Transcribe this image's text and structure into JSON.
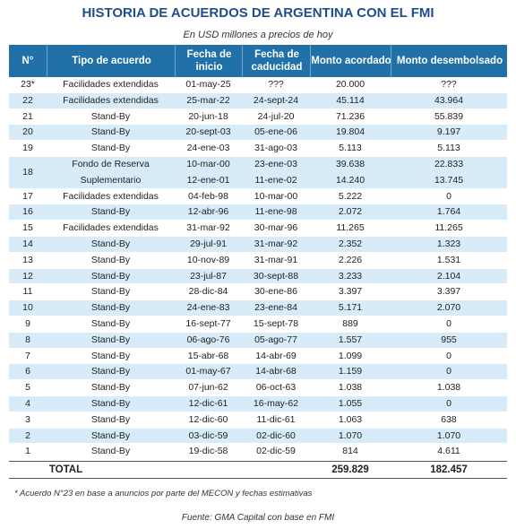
{
  "title": "HISTORIA DE ACUERDOS DE ARGENTINA CON EL FMI",
  "subtitle": "En USD millones a precios de hoy",
  "table": {
    "header": [
      "N°",
      "Tipo de acuerdo",
      "Fecha de inicio",
      "Fecha de caducidad",
      "Monto acordado",
      "Monto desembolsado"
    ],
    "rows": [
      {
        "n": "23*",
        "lines": [
          [
            "Facilidades extendidas",
            "01-may-25",
            "???",
            "20.000",
            "???"
          ]
        ]
      },
      {
        "n": "22",
        "lines": [
          [
            "Facilidades extendidas",
            "25-mar-22",
            "24-sept-24",
            "45.114",
            "43.964"
          ]
        ]
      },
      {
        "n": "21",
        "lines": [
          [
            "Stand-By",
            "20-jun-18",
            "24-jul-20",
            "71.236",
            "55.839"
          ]
        ]
      },
      {
        "n": "20",
        "lines": [
          [
            "Stand-By",
            "20-sept-03",
            "05-ene-06",
            "19.804",
            "9.197"
          ]
        ]
      },
      {
        "n": "19",
        "lines": [
          [
            "Stand-By",
            "24-ene-03",
            "31-ago-03",
            "5.113",
            "5.113"
          ]
        ]
      },
      {
        "n": "18",
        "lines": [
          [
            "Fondo de Reserva",
            "10-mar-00",
            "23-ene-03",
            "39.638",
            "22.833"
          ],
          [
            "Suplementario",
            "12-ene-01",
            "11-ene-02",
            "14.240",
            "13.745"
          ]
        ]
      },
      {
        "n": "17",
        "lines": [
          [
            "Facilidades extendidas",
            "04-feb-98",
            "10-mar-00",
            "5.222",
            "0"
          ]
        ]
      },
      {
        "n": "16",
        "lines": [
          [
            "Stand-By",
            "12-abr-96",
            "11-ene-98",
            "2.072",
            "1.764"
          ]
        ]
      },
      {
        "n": "15",
        "lines": [
          [
            "Facilidades extendidas",
            "31-mar-92",
            "30-mar-96",
            "11.265",
            "11.265"
          ]
        ]
      },
      {
        "n": "14",
        "lines": [
          [
            "Stand-By",
            "29-jul-91",
            "31-mar-92",
            "2.352",
            "1.323"
          ]
        ]
      },
      {
        "n": "13",
        "lines": [
          [
            "Stand-By",
            "10-nov-89",
            "31-mar-91",
            "2.226",
            "1.531"
          ]
        ]
      },
      {
        "n": "12",
        "lines": [
          [
            "Stand-By",
            "23-jul-87",
            "30-sept-88",
            "3.233",
            "2.104"
          ]
        ]
      },
      {
        "n": "11",
        "lines": [
          [
            "Stand-By",
            "28-dic-84",
            "30-ene-86",
            "3.397",
            "3.397"
          ]
        ]
      },
      {
        "n": "10",
        "lines": [
          [
            "Stand-By",
            "24-ene-83",
            "23-ene-84",
            "5.171",
            "2.070"
          ]
        ]
      },
      {
        "n": "9",
        "lines": [
          [
            "Stand-By",
            "16-sept-77",
            "15-sept-78",
            "889",
            "0"
          ]
        ]
      },
      {
        "n": "8",
        "lines": [
          [
            "Stand-By",
            "06-ago-76",
            "05-ago-77",
            "1.557",
            "955"
          ]
        ]
      },
      {
        "n": "7",
        "lines": [
          [
            "Stand-By",
            "15-abr-68",
            "14-abr-69",
            "1.099",
            "0"
          ]
        ]
      },
      {
        "n": "6",
        "lines": [
          [
            "Stand-By",
            "01-may-67",
            "14-abr-68",
            "1.159",
            "0"
          ]
        ]
      },
      {
        "n": "5",
        "lines": [
          [
            "Stand-By",
            "07-jun-62",
            "06-oct-63",
            "1.038",
            "1.038"
          ]
        ]
      },
      {
        "n": "4",
        "lines": [
          [
            "Stand-By",
            "12-dic-61",
            "16-may-62",
            "1.055",
            "0"
          ]
        ]
      },
      {
        "n": "3",
        "lines": [
          [
            "Stand-By",
            "12-dic-60",
            "11-dic-61",
            "1.063",
            "638"
          ]
        ]
      },
      {
        "n": "2",
        "lines": [
          [
            "Stand-By",
            "03-dic-59",
            "02-dic-60",
            "1.070",
            "1.070"
          ]
        ]
      },
      {
        "n": "1",
        "lines": [
          [
            "Stand-By",
            "19-dic-58",
            "02-dic-59",
            "814",
            "4.611"
          ]
        ]
      }
    ],
    "total": {
      "label": "TOTAL",
      "acordado": "259.829",
      "desembolsado": "182.457"
    }
  },
  "footnote": "* Acuerdo N°23 en base a anuncios por parte del MECON y fechas estimativas",
  "source": "Fuente: GMA Capital con base en FMI"
}
